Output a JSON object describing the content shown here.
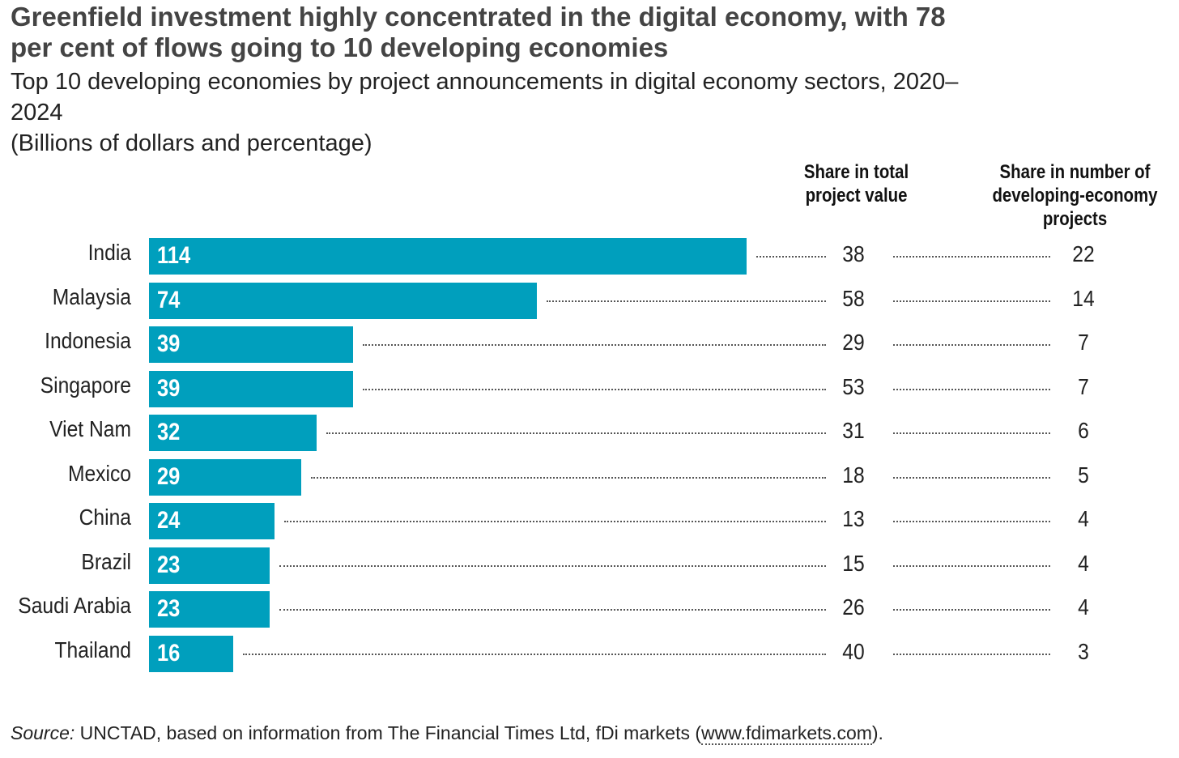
{
  "chart_data": {
    "type": "bar",
    "title": "Greenfield investment highly concentrated in the digital economy, with 78 per cent of flows going to 10 developing economies",
    "subtitle": "Top 10 developing economies by project announcements in digital economy sectors, 2020–2024",
    "units": "(Billions of dollars and percentage)",
    "categories": [
      "India",
      "Malaysia",
      "Indonesia",
      "Singapore",
      "Viet Nam",
      "Mexico",
      "China",
      "Brazil",
      "Saudi Arabia",
      "Thailand"
    ],
    "values": [
      114,
      74,
      39,
      39,
      32,
      29,
      24,
      23,
      23,
      16
    ],
    "columns": [
      {
        "header": "Share in total project value",
        "values": [
          38,
          58,
          29,
          53,
          31,
          18,
          13,
          15,
          26,
          40
        ]
      },
      {
        "header": "Share in number of developing-economy projects",
        "values": [
          22,
          14,
          7,
          7,
          6,
          5,
          4,
          4,
          4,
          3
        ]
      }
    ],
    "xlim": [
      0,
      114
    ],
    "bar_color": "#009fbd"
  },
  "source": {
    "label": "Source:",
    "text": " UNCTAD, based on information from The Financial Times Ltd, fDi markets (",
    "link": "www.fdimarkets.com",
    "end": ")."
  }
}
